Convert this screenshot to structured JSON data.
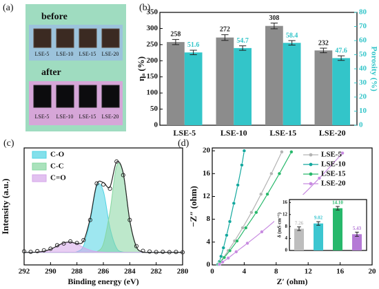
{
  "photo": {
    "panel_label": "(a)",
    "before": "before",
    "after": "after",
    "labels": [
      "LSE-5",
      "LSE-10",
      "LSE-15",
      "LSE-20"
    ]
  },
  "chart_data": [
    {
      "type": "bar",
      "panel_label": "(b)",
      "ylabel": "ηₐ (%)",
      "y2label": "Porosity (%)",
      "categories": [
        "LSE-5",
        "LSE-10",
        "LSE-15",
        "LSE-20"
      ],
      "ylim": [
        0,
        350
      ],
      "yticks": [
        0,
        50,
        100,
        150,
        200,
        250,
        300,
        350
      ],
      "y2lim": [
        0,
        80
      ],
      "y2ticks": [
        0,
        10,
        20,
        30,
        40,
        50,
        60,
        70,
        80
      ],
      "series": [
        {
          "color": "#8c8c8c",
          "values": [
            258,
            272,
            308,
            232
          ],
          "errors": [
            8,
            9,
            9,
            7
          ]
        },
        {
          "color": "#33c5c9",
          "axis": "y2",
          "values": [
            51.6,
            54.7,
            58.4,
            47.6
          ],
          "errors": [
            1.6,
            1.6,
            1.6,
            1.6
          ]
        }
      ]
    },
    {
      "type": "line",
      "panel_label": "(c)",
      "xlabel": "Binding energy (eV)",
      "ylabel": "Intensity (a.u.)",
      "x": [
        292,
        291.5,
        291,
        290.5,
        290,
        289.5,
        289,
        288.5,
        288,
        287.5,
        287,
        286.5,
        286,
        285.5,
        285,
        284.5,
        284,
        283.5,
        283,
        282.5,
        282,
        281.5,
        281,
        280.5,
        280
      ],
      "xlim": [
        292,
        280
      ],
      "xticks": [
        292,
        290,
        288,
        286,
        284,
        282,
        280
      ],
      "ylim": [
        -12,
        100
      ],
      "legend": "upper left",
      "series": [
        {
          "name": "C-O",
          "color": "#4fd3e3",
          "fill": true,
          "values": [
            0,
            0,
            0,
            0,
            0,
            0,
            0,
            0,
            0.6,
            6.3,
            30.3,
            63.6,
            58.6,
            23.6,
            4.1,
            0.3,
            0,
            0,
            0,
            0,
            0,
            0,
            0,
            0,
            0
          ]
        },
        {
          "name": "C-C",
          "color": "#86d6a0",
          "fill": true,
          "values": [
            0,
            0,
            0,
            0,
            0,
            0,
            0,
            0,
            0,
            0,
            0,
            0.7,
            8.1,
            39.1,
            82.4,
            75.8,
            30.5,
            5.4,
            0.4,
            0,
            0,
            0,
            0,
            0,
            0
          ]
        },
        {
          "name": "C=O",
          "color": "#d6a6ea",
          "fill": true,
          "values": [
            0,
            0,
            0.3,
            1.1,
            3.0,
            6.1,
            9.1,
            9.9,
            8.0,
            4.7,
            2.1,
            0.7,
            0.2,
            0,
            0,
            0,
            0,
            0,
            0,
            0,
            0,
            0,
            0,
            0,
            0
          ]
        },
        {
          "color": "#222222",
          "style": "line",
          "values": [
            0,
            0,
            0.3,
            1.1,
            3.0,
            6.1,
            9.1,
            9.9,
            8.6,
            11.0,
            32.4,
            65.0,
            66.9,
            62.7,
            86.5,
            76.1,
            30.5,
            5.4,
            0.4,
            0,
            0,
            0,
            0,
            0,
            0
          ]
        },
        {
          "color": "#222222",
          "style": "markers",
          "values": [
            1,
            0.5,
            1.2,
            2,
            3.5,
            6.8,
            8.5,
            10.5,
            9,
            11.8,
            31,
            66,
            65,
            61,
            87,
            74,
            31,
            6,
            1.5,
            0.8,
            0.3,
            0.5,
            0.2,
            0.4,
            0.1
          ]
        }
      ]
    },
    {
      "type": "line",
      "panel_label": "(d)",
      "xlabel": "Z′ (ohm)",
      "ylabel": "−Z″ (ohm)",
      "xlim": [
        0,
        20
      ],
      "xticks": [
        0,
        4,
        8,
        12,
        16,
        20
      ],
      "ylim": [
        0,
        20.5
      ],
      "yticks": [
        0,
        4,
        8,
        12,
        16,
        20
      ],
      "legend": "upper right",
      "series": [
        {
          "name": "LSE-5",
          "color": "#b3b3b3",
          "style": "line-markers",
          "x": [
            0.8,
            1.0,
            1.4,
            2.0,
            2.8,
            3.8,
            4.9,
            6.1,
            7.4,
            8.7
          ],
          "values": [
            0.1,
            0.5,
            1.3,
            2.5,
            4.2,
            6.5,
            9.2,
            12.4,
            16,
            19.8
          ]
        },
        {
          "name": "LSE-10",
          "color": "#13a89e",
          "style": "line-markers",
          "x": [
            0.7,
            0.9,
            1.1,
            1.4,
            1.8,
            2.2,
            2.7,
            3.2,
            3.7,
            4.0
          ],
          "values": [
            0.1,
            0.6,
            1.5,
            3,
            5.2,
            7.6,
            10.8,
            14,
            17.5,
            20
          ]
        },
        {
          "name": "LSE-15",
          "color": "#27b86b",
          "style": "line-markers",
          "x": [
            0.8,
            1.0,
            1.5,
            2.2,
            3.1,
            4.2,
            5.5,
            6.9,
            8.4,
            9.9
          ],
          "values": [
            0.1,
            0.5,
            1.3,
            2.5,
            4.2,
            6.5,
            9.2,
            12.4,
            16,
            19.8
          ]
        },
        {
          "name": "LSE-20",
          "color": "#c78ae0",
          "style": "line-markers",
          "x": [
            0.9,
            1.3,
            2.0,
            3.0,
            4.4,
            6.2,
            8.3,
            10.7,
            13.4,
            16.3
          ],
          "values": [
            0.1,
            0.5,
            1.2,
            2.3,
            3.8,
            5.8,
            8.3,
            11.4,
            15.2,
            19.6
          ]
        }
      ]
    },
    {
      "type": "bar",
      "ylabel": "δ (mS cm⁻¹)",
      "categories": [
        null,
        null,
        null,
        null
      ],
      "ylim": [
        0,
        17
      ],
      "yticks": [
        0,
        4,
        8,
        12,
        16
      ],
      "colors": [
        "#bdbdbd",
        "#3cc6d0",
        "#27b86b",
        "#b57ad6"
      ],
      "series": [
        {
          "values": [
            7.26,
            9.02,
            14.1,
            5.43
          ],
          "value_labels": [
            "7.26",
            "9.02",
            "14.10",
            "5.43"
          ],
          "errors": [
            0.6,
            0.6,
            0.6,
            0.7
          ]
        }
      ]
    }
  ]
}
